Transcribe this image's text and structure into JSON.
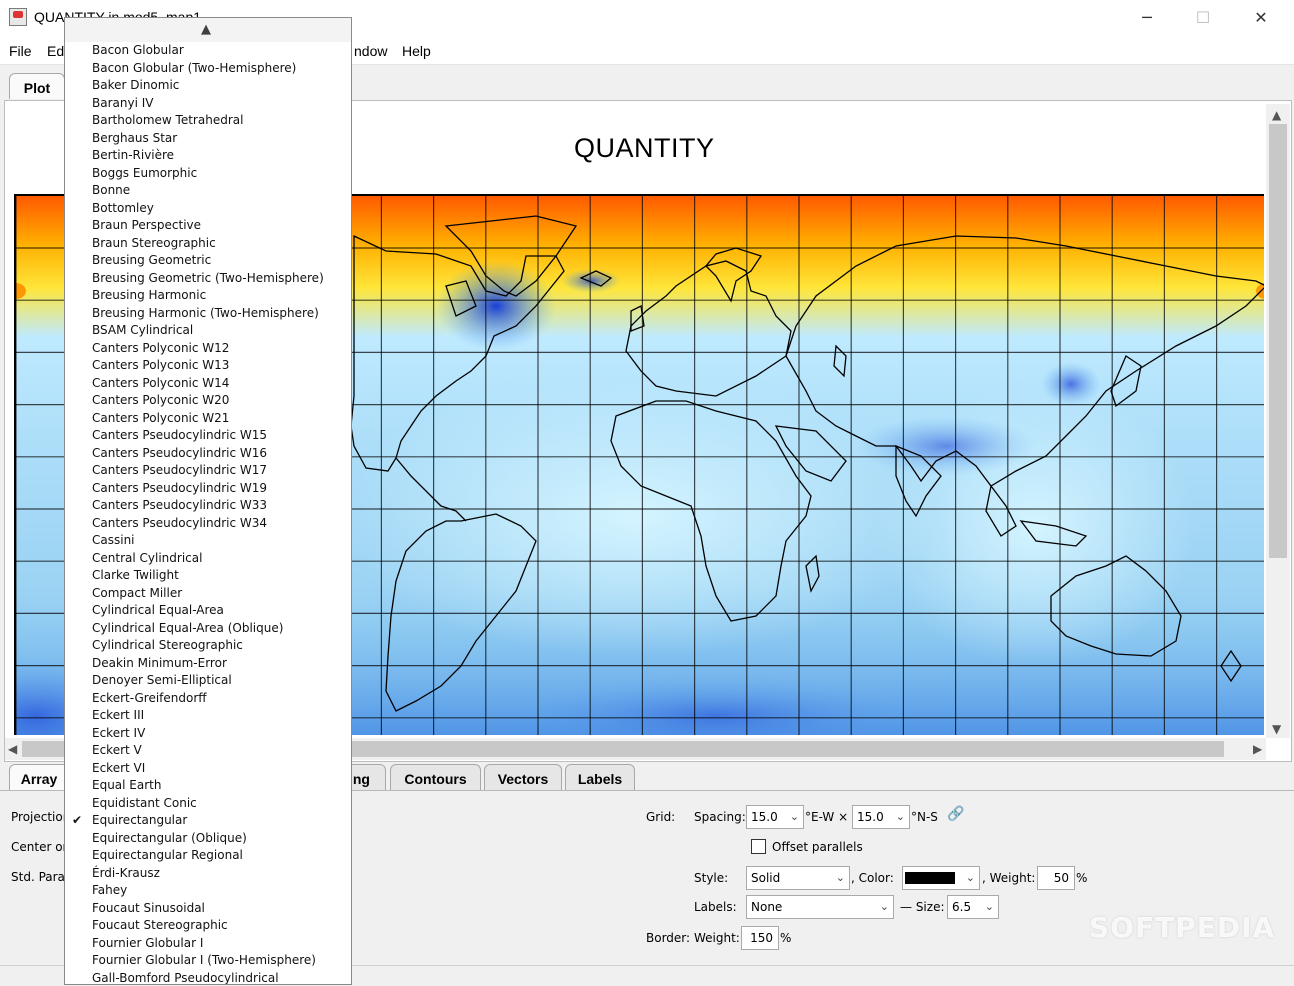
{
  "window": {
    "title": "QUANTITY in mod5_map1",
    "min_icon": "─",
    "max_icon": "☐",
    "close_icon": "✕"
  },
  "menu": {
    "file": "File",
    "edit": "Ed",
    "window": "ndow",
    "help": "Help"
  },
  "top_tabs": {
    "plot": "Plot"
  },
  "plot": {
    "title": "QUANTITY"
  },
  "bottom_tabs": {
    "arrays": "Array",
    "scaling": "ling",
    "contours": "Contours",
    "vectors": "Vectors",
    "labels": "Labels"
  },
  "left_labels": {
    "projection": "Projection",
    "center": "Center or",
    "std_para": "Std. Para"
  },
  "grid": {
    "label": "Grid:",
    "spacing_label": "Spacing:",
    "spacing_ew": "15.0",
    "ew_unit": "°E-W ×",
    "spacing_ns": "15.0",
    "ns_unit": "°N-S",
    "link_icon": "🔗",
    "offset_parallels": "Offset parallels",
    "style_label": "Style:",
    "style_value": "Solid",
    "color_label": ", Color:",
    "weight_label": ", Weight:",
    "weight_value": "50",
    "percent": "%",
    "labels_label": "Labels:",
    "labels_value": "None",
    "size_label": "— Size:",
    "size_value": "6.5",
    "border_label": "Border:",
    "border_weight_label": "Weight:",
    "border_weight_value": "150",
    "border_percent": "%",
    "line_color": "#000000"
  },
  "watermark": "SOFTPEDIA",
  "dropdown": {
    "selected": "Equirectangular",
    "items": [
      "Bacon Globular",
      "Bacon Globular (Two-Hemisphere)",
      "Baker Dinomic",
      "Baranyi IV",
      "Bartholomew Tetrahedral",
      "Berghaus Star",
      "Bertin-Rivière",
      "Boggs Eumorphic",
      "Bonne",
      "Bottomley",
      "Braun Perspective",
      "Braun Stereographic",
      "Breusing Geometric",
      "Breusing Geometric (Two-Hemisphere)",
      "Breusing Harmonic",
      "Breusing Harmonic (Two-Hemisphere)",
      "BSAM Cylindrical",
      "Canters Polyconic W12",
      "Canters Polyconic W13",
      "Canters Polyconic W14",
      "Canters Polyconic W20",
      "Canters Polyconic W21",
      "Canters Pseudocylindric W15",
      "Canters Pseudocylindric W16",
      "Canters Pseudocylindric W17",
      "Canters Pseudocylindric W19",
      "Canters Pseudocylindric W33",
      "Canters Pseudocylindric W34",
      "Cassini",
      "Central Cylindrical",
      "Clarke Twilight",
      "Compact Miller",
      "Cylindrical Equal-Area",
      "Cylindrical Equal-Area (Oblique)",
      "Cylindrical Stereographic",
      "Deakin Minimum-Error",
      "Denoyer Semi-Elliptical",
      "Eckert-Greifendorff",
      "Eckert III",
      "Eckert IV",
      "Eckert V",
      "Eckert VI",
      "Equal Earth",
      "Equidistant Conic",
      "Equirectangular",
      "Equirectangular (Oblique)",
      "Equirectangular Regional",
      "Érdi-Krausz",
      "Fahey",
      "Foucaut Sinusoidal",
      "Foucaut Stereographic",
      "Fournier Globular I",
      "Fournier Globular I (Two-Hemisphere)",
      "Gall-Bomford Pseudocylindrical"
    ]
  }
}
